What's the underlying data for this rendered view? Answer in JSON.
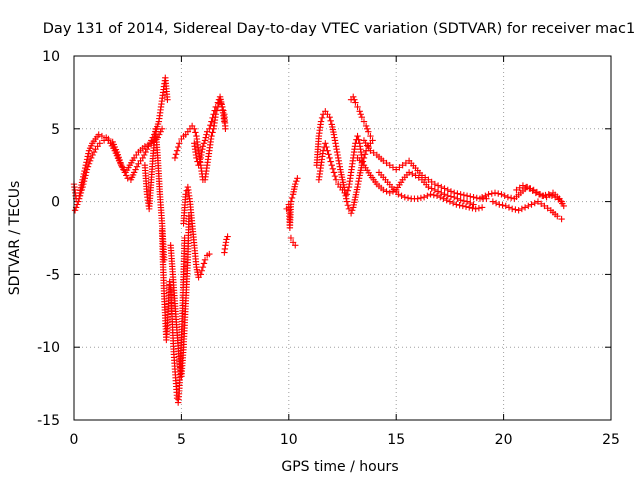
{
  "chart_data": {
    "type": "scatter",
    "title": "Day 131 of 2014, Sidereal Day-to-day VTEC variation (SDTVAR) for receiver mac1",
    "xlabel": "GPS time / hours",
    "ylabel": "SDTVAR / TECUs",
    "xlim": [
      0,
      25
    ],
    "ylim": [
      -15,
      10
    ],
    "xticks": [
      0,
      5,
      10,
      15,
      20,
      25
    ],
    "yticks": [
      10,
      5,
      0,
      -5,
      -10,
      -15
    ],
    "grid": true,
    "marker": "+",
    "color": "#ff0000",
    "series": [
      {
        "name": "mac1",
        "segments": [
          {
            "x": [
              0.0,
              0.1,
              0.25,
              0.4,
              0.55,
              0.7,
              0.85,
              1.0,
              1.15,
              1.3,
              1.5,
              1.7,
              1.9,
              2.1,
              2.3,
              2.5,
              2.65,
              2.8,
              3.0,
              3.2,
              3.4,
              3.6,
              3.8,
              3.95,
              4.05,
              4.15,
              4.25,
              4.35
            ],
            "y": [
              1.2,
              0.2,
              0.4,
              1.5,
              2.5,
              3.5,
              4.0,
              4.3,
              4.6,
              4.5,
              4.4,
              4.0,
              3.5,
              2.8,
              2.2,
              1.6,
              1.5,
              2.0,
              2.6,
              3.0,
              3.6,
              4.2,
              4.8,
              5.5,
              6.5,
              7.5,
              8.5,
              7.0
            ]
          },
          {
            "x": [
              0.05,
              0.2,
              0.4,
              0.6,
              0.8,
              1.0,
              1.2,
              1.4,
              1.6,
              1.8,
              2.0,
              2.2,
              2.4,
              2.6,
              2.8,
              3.0,
              3.3,
              3.6,
              3.9,
              4.1
            ],
            "y": [
              -0.6,
              0.0,
              1.0,
              2.2,
              3.0,
              3.6,
              4.0,
              4.2,
              4.3,
              4.1,
              3.4,
              2.5,
              2.0,
              2.5,
              3.0,
              3.4,
              3.8,
              4.0,
              4.4,
              5.0
            ]
          },
          {
            "x": [
              3.3,
              3.4,
              3.5,
              3.6,
              3.7,
              3.8,
              3.9,
              4.0,
              4.1,
              4.2
            ],
            "y": [
              2.5,
              0.5,
              -0.5,
              1.5,
              3.5,
              5.0,
              3.0,
              0.5,
              -1.5,
              -4.0
            ]
          },
          {
            "x": [
              4.1,
              4.15,
              4.2,
              4.25,
              4.3,
              4.35,
              4.4,
              4.45,
              4.5,
              4.55,
              4.6,
              4.65,
              4.7,
              4.75,
              4.8,
              4.85,
              4.9,
              4.95,
              5.0,
              5.05,
              5.1,
              5.15
            ],
            "y": [
              -2.0,
              -4.5,
              -6.5,
              -8.0,
              -9.5,
              -8.5,
              -7.0,
              -5.5,
              -6.0,
              -7.5,
              -9.0,
              -10.5,
              -11.5,
              -12.5,
              -13.5,
              -13.8,
              -13.0,
              -11.5,
              -9.5,
              -7.5,
              -5.0,
              -2.5
            ]
          },
          {
            "x": [
              4.5,
              4.6,
              4.7,
              4.8,
              4.9,
              5.0,
              5.1,
              5.2,
              5.3,
              5.35
            ],
            "y": [
              -3.0,
              -5.0,
              -7.0,
              -9.0,
              -11.0,
              -12.0,
              -10.0,
              -7.0,
              -4.0,
              -1.0
            ]
          },
          {
            "x": [
              5.1,
              5.2,
              5.3,
              5.4,
              5.5,
              5.6,
              5.7,
              5.8,
              5.9,
              6.0,
              6.1,
              6.2,
              6.3
            ],
            "y": [
              -1.5,
              0.5,
              1.0,
              0.0,
              -1.5,
              -3.0,
              -4.5,
              -5.2,
              -5.0,
              -4.5,
              -4.0,
              -3.7,
              -3.6
            ]
          },
          {
            "x": [
              4.7,
              4.8,
              4.9,
              5.0,
              5.1,
              5.2,
              5.3,
              5.4,
              5.5,
              5.6,
              5.7,
              5.8,
              5.9,
              6.0,
              6.1,
              6.2,
              6.3,
              6.4,
              6.5,
              6.6,
              6.7,
              6.8,
              6.9,
              7.0,
              7.05
            ],
            "y": [
              3.0,
              3.5,
              4.0,
              4.3,
              4.5,
              4.6,
              4.8,
              5.0,
              5.2,
              5.0,
              4.5,
              3.5,
              2.5,
              1.5,
              1.5,
              2.5,
              3.5,
              4.5,
              5.0,
              6.0,
              6.5,
              7.0,
              6.5,
              6.0,
              5.0
            ]
          },
          {
            "x": [
              5.6,
              5.7,
              5.8,
              5.9,
              6.0,
              6.1,
              6.2,
              6.3,
              6.4,
              6.5,
              6.6,
              6.7,
              6.8,
              6.9,
              7.0
            ],
            "y": [
              4.0,
              3.0,
              2.5,
              3.0,
              3.8,
              4.2,
              4.8,
              5.0,
              5.5,
              6.0,
              6.5,
              6.8,
              7.2,
              6.5,
              5.5
            ]
          },
          {
            "x": [
              7.0,
              7.05,
              7.1,
              7.15
            ],
            "y": [
              -3.5,
              -3.0,
              -2.6,
              -2.4
            ]
          },
          {
            "x": [
              9.9,
              10.0,
              10.05,
              10.1,
              10.2,
              10.3,
              10.4
            ],
            "y": [
              -0.5,
              -0.2,
              -1.8,
              0.0,
              0.5,
              1.2,
              1.6
            ]
          },
          {
            "x": [
              10.1,
              10.2,
              10.3
            ],
            "y": [
              -2.5,
              -2.8,
              -3.0
            ]
          },
          {
            "x": [
              11.3,
              11.4,
              11.5,
              11.6,
              11.7,
              11.8,
              11.9,
              12.0,
              12.1,
              12.2,
              12.3,
              12.4,
              12.5,
              12.6,
              12.7,
              12.8,
              12.9,
              13.0,
              13.1,
              13.2,
              13.3,
              13.4,
              13.5,
              13.6,
              13.7,
              13.8,
              13.9
            ],
            "y": [
              2.5,
              4.5,
              5.5,
              6.0,
              6.2,
              6.0,
              5.8,
              5.3,
              4.6,
              3.8,
              3.0,
              2.2,
              1.5,
              0.8,
              0.0,
              -0.5,
              -0.8,
              -0.4,
              0.3,
              1.0,
              1.8,
              2.5,
              3.0,
              3.5,
              3.8,
              4.0,
              4.2
            ]
          },
          {
            "x": [
              11.4,
              11.5,
              11.6,
              11.7,
              11.8,
              11.9,
              12.0,
              12.1,
              12.2,
              12.3,
              12.4,
              12.5,
              12.6,
              12.7,
              12.8,
              12.9,
              13.0,
              13.1,
              13.2,
              13.3,
              13.4
            ],
            "y": [
              1.5,
              2.5,
              3.5,
              4.0,
              3.5,
              3.0,
              2.5,
              2.0,
              1.5,
              1.2,
              1.0,
              0.8,
              0.6,
              0.5,
              1.0,
              2.0,
              3.0,
              4.0,
              4.5,
              4.0,
              3.0
            ]
          },
          {
            "x": [
              12.9,
              13.0,
              13.1,
              13.2,
              13.3,
              13.4,
              13.5,
              13.6,
              13.7,
              13.8
            ],
            "y": [
              7.0,
              7.2,
              6.8,
              6.5,
              6.2,
              5.8,
              5.5,
              5.2,
              4.8,
              4.5
            ]
          },
          {
            "x": [
              13.5,
              13.8,
              14.1,
              14.4,
              14.7,
              15.0,
              15.3,
              15.6,
              15.9,
              16.2,
              16.5,
              16.8,
              17.1,
              17.4,
              17.7,
              18.0,
              18.3,
              18.6,
              18.9,
              19.2
            ],
            "y": [
              4.2,
              3.5,
              3.2,
              2.8,
              2.5,
              2.2,
              2.5,
              2.8,
              2.3,
              1.8,
              1.5,
              1.2,
              1.0,
              0.8,
              0.6,
              0.5,
              0.4,
              0.3,
              0.2,
              0.2
            ]
          },
          {
            "x": [
              13.2,
              13.5,
              13.8,
              14.1,
              14.4,
              14.7,
              15.0,
              15.3,
              15.6,
              15.9,
              16.2,
              16.5,
              16.8,
              17.1,
              17.4,
              17.7,
              18.0,
              18.3,
              18.6
            ],
            "y": [
              3.0,
              2.5,
              1.8,
              1.2,
              0.8,
              0.6,
              0.8,
              1.5,
              2.0,
              1.8,
              1.5,
              1.0,
              0.8,
              0.6,
              0.4,
              0.3,
              0.1,
              0.0,
              -0.2
            ]
          },
          {
            "x": [
              14.2,
              14.5,
              14.8,
              15.1,
              15.4,
              15.7,
              16.0,
              16.3,
              16.6,
              16.9,
              17.2,
              17.5,
              17.8,
              18.1,
              18.4,
              18.7,
              19.0
            ],
            "y": [
              2.0,
              1.5,
              1.0,
              0.5,
              0.3,
              0.2,
              0.2,
              0.3,
              0.5,
              0.4,
              0.2,
              0.0,
              -0.2,
              -0.3,
              -0.4,
              -0.5,
              -0.4
            ]
          },
          {
            "x": [
              19.0,
              19.3,
              19.6,
              19.9,
              20.2,
              20.5,
              20.8,
              21.1,
              21.4,
              21.7,
              22.0,
              22.3,
              22.6,
              22.8
            ],
            "y": [
              0.3,
              0.5,
              0.6,
              0.5,
              0.3,
              0.2,
              0.6,
              1.0,
              0.8,
              0.5,
              0.3,
              0.6,
              0.2,
              -0.3
            ]
          },
          {
            "x": [
              19.5,
              19.8,
              20.1,
              20.4,
              20.7,
              21.0,
              21.3,
              21.6,
              21.9,
              22.2,
              22.5,
              22.7
            ],
            "y": [
              0.0,
              -0.2,
              -0.3,
              -0.5,
              -0.6,
              -0.4,
              -0.2,
              0.0,
              -0.3,
              -0.6,
              -1.0,
              -1.2
            ]
          },
          {
            "x": [
              20.6,
              20.9,
              21.2,
              21.5,
              21.8,
              22.1,
              22.4,
              22.7
            ],
            "y": [
              0.8,
              1.1,
              0.9,
              0.6,
              0.4,
              0.5,
              0.3,
              0.0
            ]
          }
        ]
      }
    ]
  }
}
